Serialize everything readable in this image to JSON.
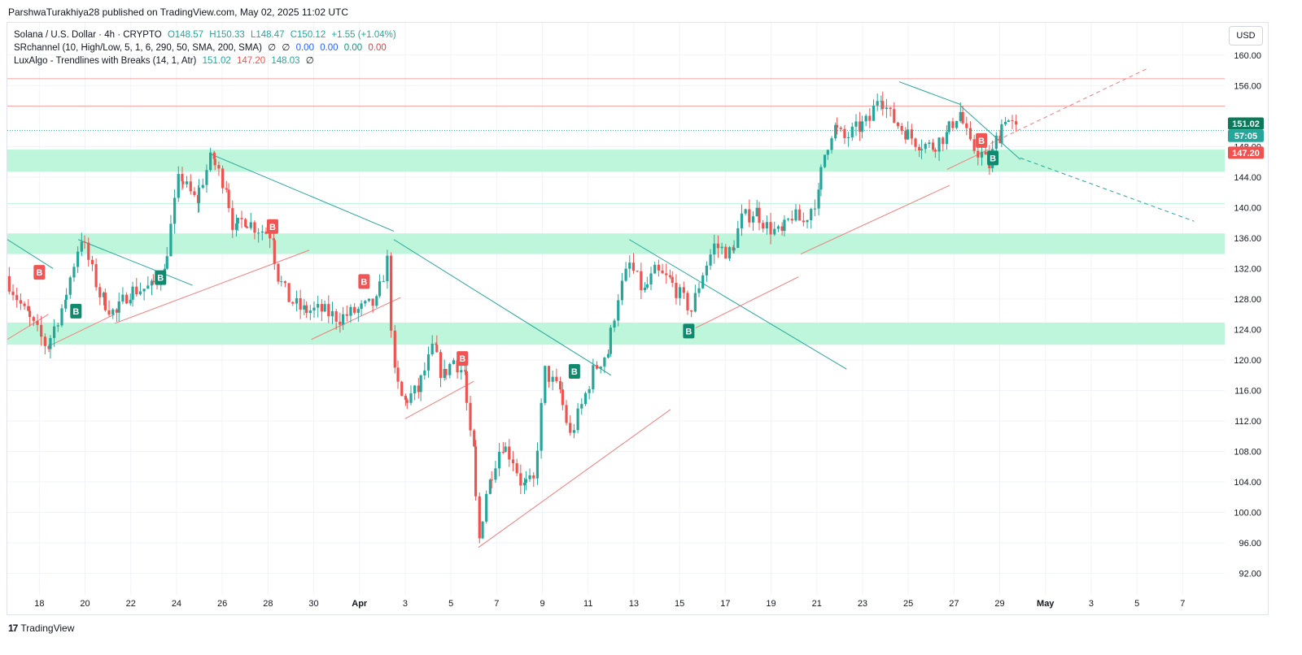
{
  "header": {
    "published_by": "ParshwaTurakhiya28 published on TradingView.com, May 02, 2025 11:02 UTC"
  },
  "legend": {
    "symbol": "Solana / U.S. Dollar · 4h · CRYPTO",
    "ohlc": {
      "o": "O148.57",
      "h": "H150.33",
      "l": "L148.47",
      "c": "C150.12",
      "chg": "+1.55 (+1.04%)"
    },
    "indicator1": {
      "name": "SRchannel (10, High/Low, 5, 1, 6, 290, 50, SMA, 200, SMA)",
      "vals": [
        "∅",
        "∅",
        "0.00",
        "0.00",
        "0.00",
        "0.00"
      ]
    },
    "indicator2": {
      "name": "LuxAlgo - Trendlines with Breaks (14, 1, Atr)",
      "vals": [
        "151.02",
        "147.20",
        "148.03",
        "∅"
      ]
    }
  },
  "currency_button": "USD",
  "footer": {
    "logo_text": "TradingView",
    "logo_mark": "17"
  },
  "colors": {
    "up": "#26a69a",
    "down": "#ef5350",
    "zone": "#b9f5d9",
    "red_line": "#f6a0a0",
    "teal_line": "#26a69a"
  },
  "chart_data": {
    "type": "candlestick",
    "ylim": [
      89.5,
      162
    ],
    "x_ticks": [
      "18",
      "20",
      "22",
      "24",
      "26",
      "28",
      "30",
      "Apr",
      "3",
      "5",
      "7",
      "9",
      "11",
      "13",
      "15",
      "17",
      "19",
      "21",
      "23",
      "25",
      "27",
      "29",
      "May",
      "3",
      "5",
      "7"
    ],
    "y_ticks": [
      "160.00",
      "156.00",
      "148.00",
      "144.00",
      "140.00",
      "136.00",
      "132.00",
      "128.00",
      "124.00",
      "120.00",
      "116.00",
      "112.00",
      "108.00",
      "104.00",
      "100.00",
      "96.00",
      "92.00"
    ],
    "price_labels": [
      {
        "text": "151.02",
        "value": 151.02,
        "color": "#0a7a5a"
      },
      {
        "text": "57:05",
        "value": 149.4,
        "color": "#26a69a"
      },
      {
        "text": "147.20",
        "value": 147.2,
        "color": "#ef5350"
      }
    ],
    "horizontal_levels": [
      {
        "value": 156.9,
        "color": "#f6a0a0"
      },
      {
        "value": 153.3,
        "color": "#f6a0a0"
      },
      {
        "value": 150.1,
        "color": "#26a69a",
        "dotted": true
      },
      {
        "value": 140.5,
        "color": "#b9f5d9"
      }
    ],
    "zones": [
      {
        "from": 144.7,
        "to": 147.6
      },
      {
        "from": 133.9,
        "to": 136.6
      },
      {
        "from": 122.0,
        "to": 124.9
      }
    ],
    "markers": [
      {
        "label": "B",
        "type": "break_down",
        "day": 18.0,
        "value": 131.5
      },
      {
        "label": "B",
        "type": "break_up",
        "day": 19.6,
        "value": 126.4
      },
      {
        "label": "B",
        "type": "break_up",
        "day": 23.3,
        "value": 130.8
      },
      {
        "label": "B",
        "type": "break_down",
        "day": 28.2,
        "value": 137.5
      },
      {
        "label": "B",
        "type": "break_down",
        "day": 32.2,
        "value": 130.3
      },
      {
        "label": "B",
        "type": "break_down",
        "day": 36.5,
        "value": 120.2
      },
      {
        "label": "B",
        "type": "break_up",
        "day": 41.4,
        "value": 118.5
      },
      {
        "label": "B",
        "type": "break_up",
        "day": 46.4,
        "value": 123.8
      },
      {
        "label": "B",
        "type": "break_down",
        "day": 59.2,
        "value": 148.8
      },
      {
        "label": "B",
        "type": "break_up",
        "day": 59.7,
        "value": 146.5
      }
    ],
    "trendlines": [
      {
        "color": "#26a69a",
        "points": [
          [
            16.6,
            135.8
          ],
          [
            18.6,
            132.0
          ]
        ]
      },
      {
        "color": "#26a69a",
        "points": [
          [
            19.7,
            135.8
          ],
          [
            24.7,
            129.8
          ]
        ]
      },
      {
        "color": "#26a69a",
        "points": [
          [
            25.5,
            147.0
          ],
          [
            33.5,
            136.9
          ]
        ]
      },
      {
        "color": "#26a69a",
        "points": [
          [
            33.5,
            135.8
          ],
          [
            43.0,
            118.0
          ]
        ]
      },
      {
        "color": "#26a69a",
        "points": [
          [
            43.8,
            135.8
          ],
          [
            53.3,
            118.8
          ]
        ]
      },
      {
        "color": "#26a69a",
        "points": [
          [
            55.6,
            156.5
          ],
          [
            58.3,
            153.5
          ]
        ]
      },
      {
        "color": "#26a69a",
        "points": [
          [
            58.3,
            153.3
          ],
          [
            60.9,
            146.3
          ]
        ]
      },
      {
        "color": "#26a69a",
        "dashed": true,
        "points": [
          [
            60.9,
            146.5
          ],
          [
            68.5,
            138.2
          ]
        ]
      },
      {
        "color": "#f27d7d",
        "points": [
          [
            16.6,
            122.7
          ],
          [
            18.4,
            126.0
          ]
        ]
      },
      {
        "color": "#f27d7d",
        "points": [
          [
            18.4,
            121.8
          ],
          [
            21.3,
            126.0
          ]
        ]
      },
      {
        "color": "#f27d7d",
        "points": [
          [
            21.3,
            124.8
          ],
          [
            29.8,
            134.4
          ]
        ]
      },
      {
        "color": "#f27d7d",
        "points": [
          [
            29.9,
            122.7
          ],
          [
            33.8,
            128.2
          ]
        ]
      },
      {
        "color": "#f27d7d",
        "points": [
          [
            34.0,
            112.3
          ],
          [
            37.0,
            117.2
          ]
        ]
      },
      {
        "color": "#f27d7d",
        "points": [
          [
            37.2,
            95.4
          ],
          [
            45.6,
            113.5
          ]
        ]
      },
      {
        "color": "#f27d7d",
        "points": [
          [
            46.7,
            124.2
          ],
          [
            51.2,
            130.9
          ]
        ]
      },
      {
        "color": "#f27d7d",
        "points": [
          [
            51.3,
            133.9
          ],
          [
            57.8,
            142.9
          ]
        ]
      },
      {
        "color": "#f27d7d",
        "points": [
          [
            57.7,
            145.0
          ],
          [
            59.5,
            147.6
          ]
        ]
      },
      {
        "color": "#f27d7d",
        "dashed": true,
        "points": [
          [
            59.6,
            148.4
          ],
          [
            66.5,
            158.3
          ]
        ]
      }
    ],
    "anchors": [
      {
        "day": 16.6,
        "value": 131.0
      },
      {
        "day": 17.5,
        "value": 126.0
      },
      {
        "day": 18.4,
        "value": 121.8
      },
      {
        "day": 19.1,
        "value": 127.0
      },
      {
        "day": 19.9,
        "value": 136.1
      },
      {
        "day": 20.8,
        "value": 128.0
      },
      {
        "day": 21.4,
        "value": 126.0
      },
      {
        "day": 22.0,
        "value": 129.0
      },
      {
        "day": 22.9,
        "value": 129.5
      },
      {
        "day": 23.5,
        "value": 131.5
      },
      {
        "day": 24.2,
        "value": 144.0
      },
      {
        "day": 24.9,
        "value": 141.0
      },
      {
        "day": 25.6,
        "value": 146.5
      },
      {
        "day": 26.2,
        "value": 143.0
      },
      {
        "day": 26.6,
        "value": 137.0
      },
      {
        "day": 27.0,
        "value": 138.5
      },
      {
        "day": 27.5,
        "value": 137.5
      },
      {
        "day": 28.2,
        "value": 136.5
      },
      {
        "day": 28.5,
        "value": 131.0
      },
      {
        "day": 29.0,
        "value": 128.0
      },
      {
        "day": 29.6,
        "value": 126.5
      },
      {
        "day": 30.4,
        "value": 126.5
      },
      {
        "day": 31.2,
        "value": 125.5
      },
      {
        "day": 32.0,
        "value": 126.5
      },
      {
        "day": 32.8,
        "value": 127.5
      },
      {
        "day": 33.3,
        "value": 133.0
      },
      {
        "day": 33.6,
        "value": 118.0
      },
      {
        "day": 34.0,
        "value": 114.5
      },
      {
        "day": 34.6,
        "value": 116.0
      },
      {
        "day": 35.3,
        "value": 121.5
      },
      {
        "day": 35.7,
        "value": 118.0
      },
      {
        "day": 36.2,
        "value": 120.0
      },
      {
        "day": 36.6,
        "value": 118.5
      },
      {
        "day": 37.0,
        "value": 108.0
      },
      {
        "day": 37.3,
        "value": 96.5
      },
      {
        "day": 37.7,
        "value": 104.0
      },
      {
        "day": 38.3,
        "value": 109.0
      },
      {
        "day": 38.8,
        "value": 107.0
      },
      {
        "day": 39.2,
        "value": 103.5
      },
      {
        "day": 39.7,
        "value": 104.0
      },
      {
        "day": 40.2,
        "value": 118.5
      },
      {
        "day": 40.8,
        "value": 116.0
      },
      {
        "day": 41.3,
        "value": 110.0
      },
      {
        "day": 41.8,
        "value": 114.0
      },
      {
        "day": 42.3,
        "value": 118.5
      },
      {
        "day": 42.9,
        "value": 121.0
      },
      {
        "day": 43.4,
        "value": 128.5
      },
      {
        "day": 43.9,
        "value": 132.5
      },
      {
        "day": 44.5,
        "value": 129.0
      },
      {
        "day": 45.0,
        "value": 131.5
      },
      {
        "day": 45.6,
        "value": 130.5
      },
      {
        "day": 46.1,
        "value": 128.5
      },
      {
        "day": 46.6,
        "value": 126.5
      },
      {
        "day": 47.1,
        "value": 131.5
      },
      {
        "day": 47.6,
        "value": 135.0
      },
      {
        "day": 48.3,
        "value": 134.0
      },
      {
        "day": 48.8,
        "value": 138.5
      },
      {
        "day": 49.4,
        "value": 139.5
      },
      {
        "day": 49.9,
        "value": 137.5
      },
      {
        "day": 50.5,
        "value": 136.5
      },
      {
        "day": 51.0,
        "value": 139.0
      },
      {
        "day": 51.5,
        "value": 138.0
      },
      {
        "day": 52.1,
        "value": 141.5
      },
      {
        "day": 52.4,
        "value": 147.0
      },
      {
        "day": 52.8,
        "value": 150.5
      },
      {
        "day": 53.3,
        "value": 149.0
      },
      {
        "day": 53.9,
        "value": 150.5
      },
      {
        "day": 54.4,
        "value": 151.5
      },
      {
        "day": 54.8,
        "value": 155.0
      },
      {
        "day": 55.3,
        "value": 152.0
      },
      {
        "day": 55.9,
        "value": 150.0
      },
      {
        "day": 56.5,
        "value": 148.5
      },
      {
        "day": 57.1,
        "value": 148.0
      },
      {
        "day": 57.7,
        "value": 149.5
      },
      {
        "day": 58.3,
        "value": 152.5
      },
      {
        "day": 58.8,
        "value": 148.0
      },
      {
        "day": 59.3,
        "value": 147.0
      },
      {
        "day": 59.6,
        "value": 145.5
      },
      {
        "day": 60.0,
        "value": 149.5
      },
      {
        "day": 60.3,
        "value": 152.0
      },
      {
        "day": 60.8,
        "value": 150.1
      }
    ]
  }
}
